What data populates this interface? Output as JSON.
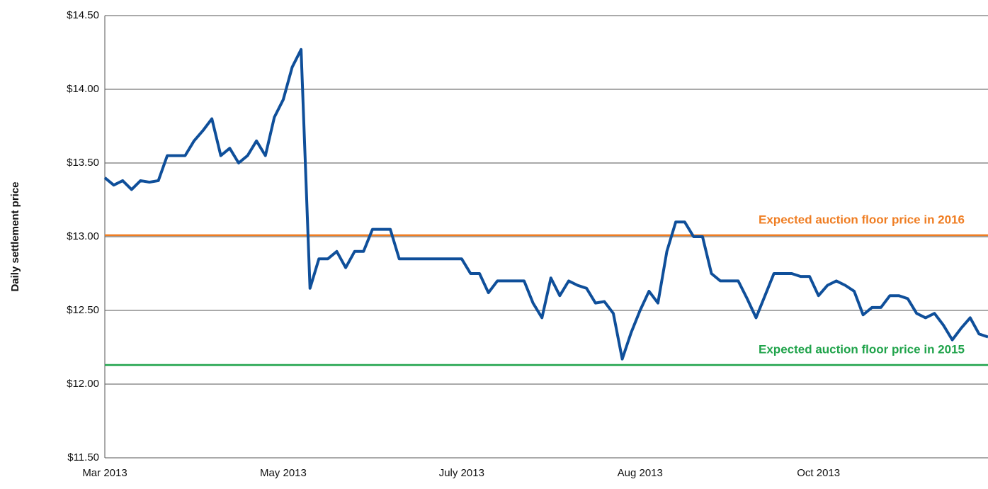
{
  "chart_data": {
    "type": "line",
    "y_label": "Daily settlement price",
    "categories": [
      "Mar 2013",
      null,
      null,
      null,
      null,
      null,
      null,
      null,
      null,
      null,
      null,
      null,
      null,
      null,
      null,
      null,
      null,
      null,
      null,
      null,
      "May 2013",
      null,
      null,
      null,
      null,
      null,
      null,
      null,
      null,
      null,
      null,
      null,
      null,
      null,
      null,
      null,
      null,
      null,
      null,
      null,
      "July 2013",
      null,
      null,
      null,
      null,
      null,
      null,
      null,
      null,
      null,
      null,
      null,
      null,
      null,
      null,
      null,
      null,
      null,
      null,
      null,
      "Aug 2013",
      null,
      null,
      null,
      null,
      null,
      null,
      null,
      null,
      null,
      null,
      null,
      null,
      null,
      null,
      null,
      null,
      null,
      null,
      null,
      "Oct 2013",
      null,
      null,
      null,
      null,
      null,
      null,
      null,
      null,
      null,
      null,
      null,
      null,
      null,
      null,
      null,
      null,
      null,
      null,
      null
    ],
    "values": [
      13.4,
      13.35,
      13.38,
      13.32,
      13.38,
      13.37,
      13.38,
      13.55,
      13.55,
      13.55,
      13.65,
      13.72,
      13.8,
      13.55,
      13.6,
      13.5,
      13.55,
      13.65,
      13.55,
      13.81,
      13.93,
      14.15,
      14.27,
      12.65,
      12.85,
      12.85,
      12.9,
      12.79,
      12.9,
      12.9,
      13.05,
      13.05,
      13.05,
      12.85,
      12.85,
      12.85,
      12.85,
      12.85,
      12.85,
      12.85,
      12.85,
      12.75,
      12.75,
      12.62,
      12.7,
      12.7,
      12.7,
      12.7,
      12.55,
      12.45,
      12.72,
      12.6,
      12.7,
      12.67,
      12.65,
      12.55,
      12.56,
      12.48,
      12.17,
      12.35,
      12.5,
      12.63,
      12.55,
      12.9,
      13.1,
      13.1,
      13.0,
      13.0,
      12.75,
      12.7,
      12.7,
      12.7,
      12.58,
      12.45,
      12.6,
      12.75,
      12.75,
      12.75,
      12.73,
      12.73,
      12.6,
      12.67,
      12.7,
      12.67,
      12.63,
      12.47,
      12.52,
      12.52,
      12.6,
      12.6,
      12.58,
      12.48,
      12.45,
      12.48,
      12.4,
      12.3,
      12.38,
      12.45,
      12.34,
      12.32
    ],
    "color": "#0f4f9a",
    "ylim": [
      11.5,
      14.5
    ],
    "yticks": [
      {
        "value": 11.5,
        "label": "$11.50"
      },
      {
        "value": 12,
        "label": "$12.00"
      },
      {
        "value": 12.5,
        "label": "$12.50"
      },
      {
        "value": 13,
        "label": "$13.00"
      },
      {
        "value": 13.5,
        "label": "$13.50"
      },
      {
        "value": 14,
        "label": "$14.00"
      },
      {
        "value": 14.5,
        "label": "$14.50"
      }
    ],
    "grid": true,
    "reference_lines": [
      {
        "label": "Expected auction floor price in 2016",
        "value": 13.01,
        "color": "#ef7d22"
      },
      {
        "label": "Expected auction floor price in 2015",
        "value": 12.13,
        "color": "#1fa34a"
      }
    ]
  }
}
